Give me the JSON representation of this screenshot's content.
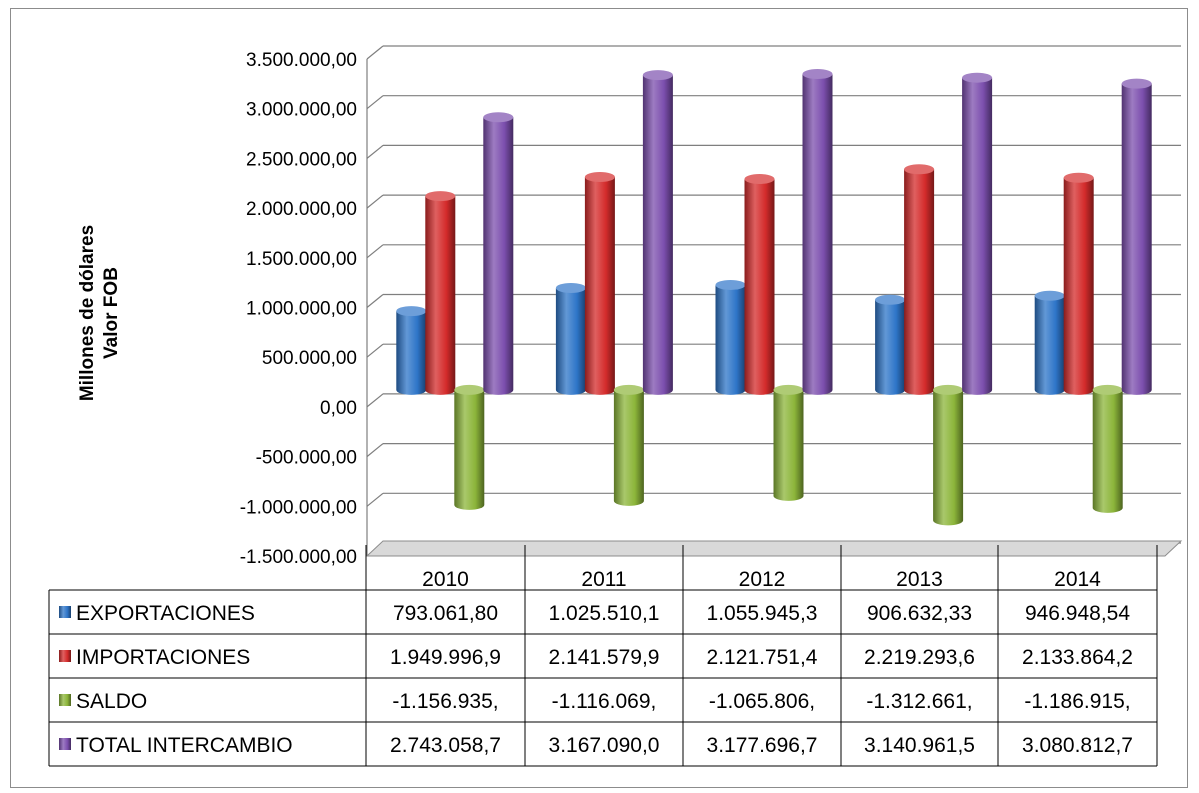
{
  "chart_data": {
    "type": "bar",
    "ylabel": "Millones de dólares\nValor FOB",
    "ylim": [
      -1500000,
      3500000
    ],
    "ytick_step": 500000,
    "ytick_labels": [
      "3.500.000,00",
      "3.000.000,00",
      "2.500.000,00",
      "2.000.000,00",
      "1.500.000,00",
      "1.000.000,00",
      "500.000,00",
      "0,00",
      "-500.000,00",
      "-1.000.000,00",
      "-1.500.000,00"
    ],
    "categories": [
      "2010",
      "2011",
      "2012",
      "2013",
      "2014"
    ],
    "grid": true,
    "legend": "data-table",
    "series": [
      {
        "name": "EXPORTACIONES",
        "color": "#2e75c8",
        "values": [
          793061.8,
          1025510.1,
          1055945.3,
          906632.33,
          946948.54
        ],
        "labels": [
          "793.061,80",
          "1.025.510,1",
          "1.055.945,3",
          "906.632,33",
          "946.948,54"
        ]
      },
      {
        "name": "IMPORTACIONES",
        "color": "#d42b2b",
        "values": [
          1949996.9,
          2141579.9,
          2121751.4,
          2219293.6,
          2133864.2
        ],
        "labels": [
          "1.949.996,9",
          "2.141.579,9",
          "2.121.751,4",
          "2.219.293,6",
          "2.133.864,2"
        ]
      },
      {
        "name": "SALDO",
        "color": "#8cb53a",
        "values": [
          -1156935,
          -1116069,
          -1065806,
          -1312661,
          -1186915
        ],
        "labels": [
          "-1.156.935,",
          "-1.116.069,",
          "-1.065.806,",
          "-1.312.661,",
          "-1.186.915,"
        ]
      },
      {
        "name": "TOTAL INTERCAMBIO",
        "color": "#7c4fae",
        "values": [
          2743058.7,
          3167090.0,
          3177696.7,
          3140961.5,
          3080812.7
        ],
        "labels": [
          "2.743.058,7",
          "3.167.090,0",
          "3.177.696,7",
          "3.140.961,5",
          "3.080.812,7"
        ]
      }
    ]
  }
}
